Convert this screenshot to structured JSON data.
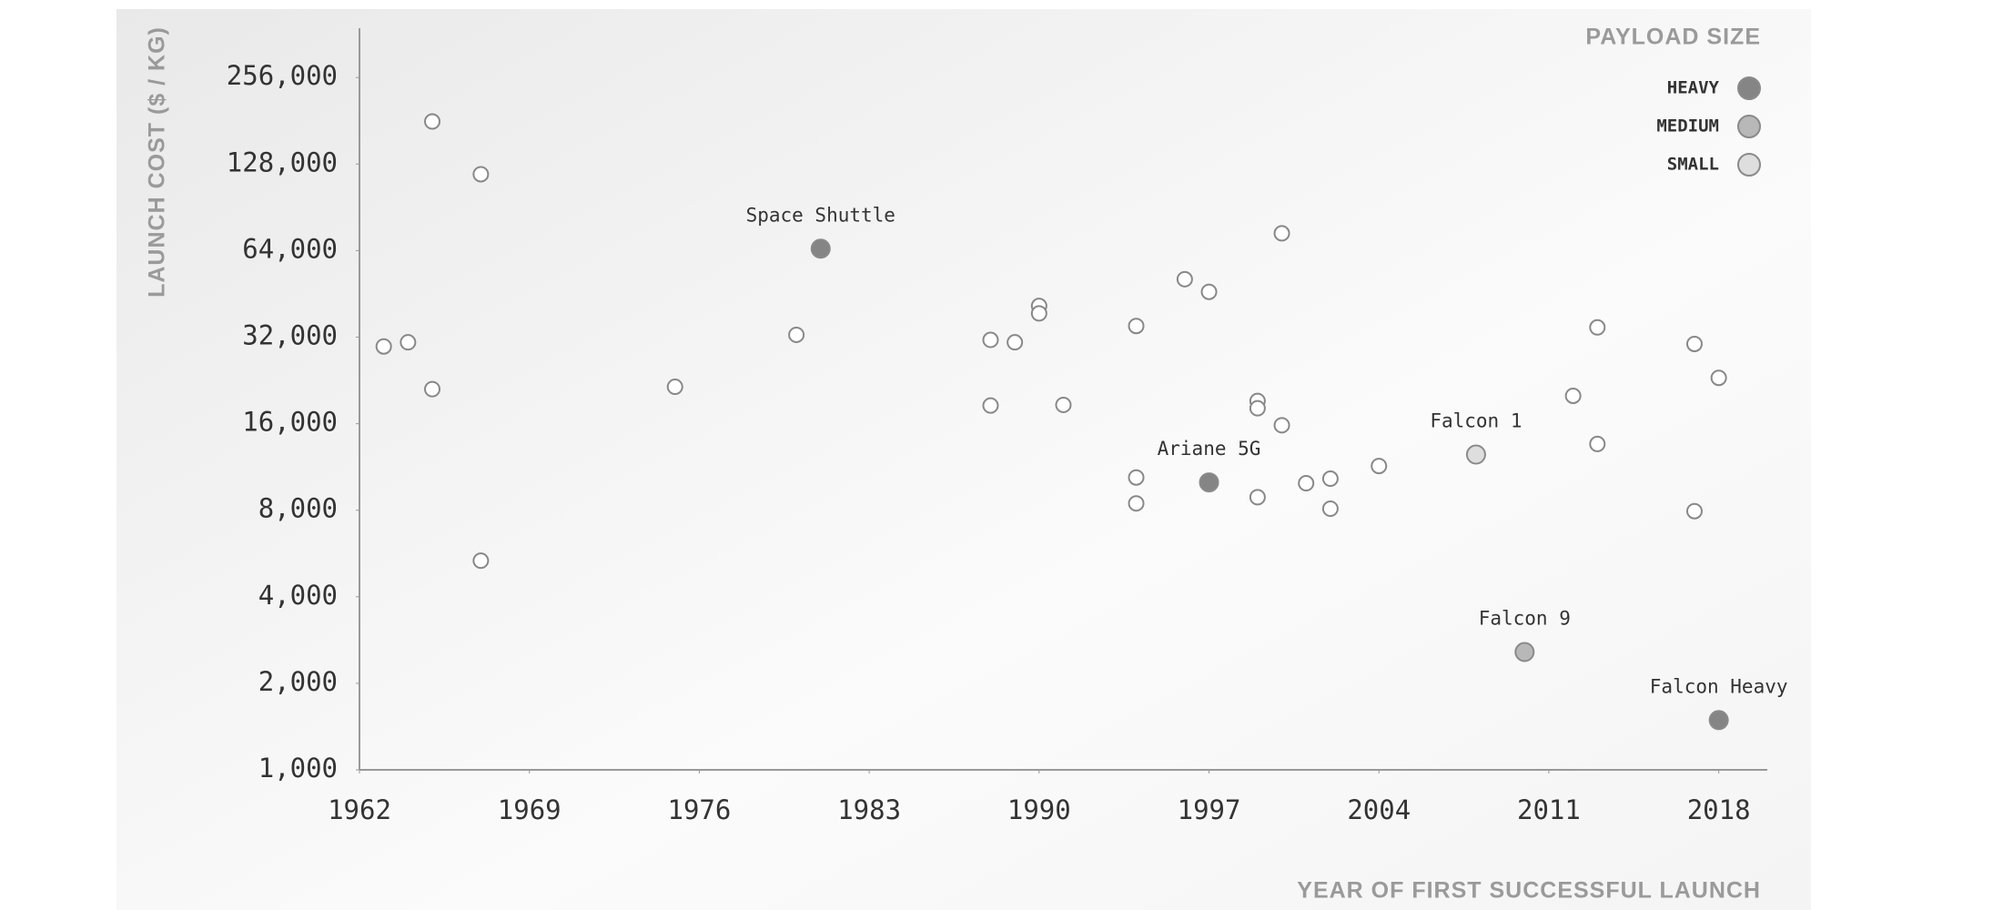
{
  "chart_data": {
    "type": "scatter",
    "xlabel": "YEAR OF FIRST SUCCESSFUL LAUNCH",
    "ylabel": "LAUNCH COST ($ / KG)",
    "legend_title": "PAYLOAD SIZE",
    "legend": "upper right",
    "log_y": true,
    "xlim": [
      1962,
      2020
    ],
    "xticks": [
      1962,
      1969,
      1976,
      1983,
      1990,
      1997,
      2004,
      2011,
      2018
    ],
    "ylim": [
      1000,
      380000
    ],
    "yticks": [
      {
        "value": 1000,
        "label": "1,000"
      },
      {
        "value": 2000,
        "label": "2,000"
      },
      {
        "value": 4000,
        "label": "4,000"
      },
      {
        "value": 8000,
        "label": "8,000"
      },
      {
        "value": 16000,
        "label": "16,000"
      },
      {
        "value": 32000,
        "label": "32,000"
      },
      {
        "value": 64000,
        "label": "64,000"
      },
      {
        "value": 128000,
        "label": "128,000"
      },
      {
        "value": 256000,
        "label": "256,000"
      }
    ],
    "series": [
      {
        "name": "HEAVY",
        "color": "#858585",
        "x": [
          1981,
          1997,
          2018
        ],
        "values": [
          65000,
          10000,
          1490
        ],
        "labels": [
          "Space Shuttle",
          "Ariane 5G",
          "Falcon Heavy"
        ]
      },
      {
        "name": "MEDIUM",
        "color": "#b8b8b8",
        "x": [
          2010
        ],
        "values": [
          2570
        ],
        "labels": [
          "Falcon 9"
        ]
      },
      {
        "name": "SMALL",
        "color": "#dedede",
        "x": [
          2008
        ],
        "values": [
          12500
        ],
        "labels": [
          "Falcon 1"
        ]
      },
      {
        "color": "#ffffff",
        "x": [
          1963,
          1964,
          1965,
          1965,
          1967,
          1967,
          1975,
          1980,
          1988,
          1988,
          1989,
          1990,
          1990,
          1991,
          1994,
          1994,
          1994,
          1996,
          1997,
          1999,
          1999,
          1999,
          2000,
          2000,
          2001,
          2002,
          2002,
          2004,
          2012,
          2013,
          2013,
          2017,
          2017,
          2018
        ],
        "values": [
          29700,
          30700,
          180000,
          21100,
          118000,
          5340,
          21500,
          32600,
          31300,
          18500,
          30700,
          41100,
          38700,
          18600,
          35000,
          10400,
          8450,
          50900,
          46000,
          19200,
          18100,
          8880,
          73500,
          15800,
          9930,
          10300,
          8100,
          11400,
          20000,
          34600,
          13600,
          30300,
          7940,
          23100
        ]
      }
    ]
  }
}
